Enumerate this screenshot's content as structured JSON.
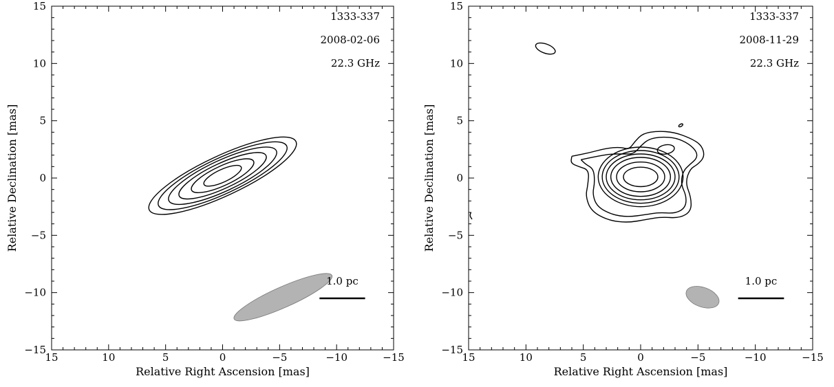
{
  "chart_data": [
    {
      "type": "contour",
      "annotations": [
        "1333-337",
        "2008-02-06",
        "22.3 GHz"
      ],
      "xlabel": "Relative Right Ascension [mas]",
      "ylabel": "Relative Declination [mas]",
      "xlim": [
        15,
        -15
      ],
      "ylim": [
        -15,
        15
      ],
      "xticks": [
        15,
        10,
        5,
        0,
        -5,
        -10,
        -15
      ],
      "yticks": [
        -15,
        -10,
        -5,
        0,
        5,
        10,
        15
      ],
      "xtick_labels": [
        "15",
        "10",
        "5",
        "0",
        "−5",
        "−10",
        "−15"
      ],
      "ytick_labels": [
        "−15",
        "−10",
        "−5",
        "0",
        "5",
        "10",
        "15"
      ],
      "scale_bar": {
        "label": "1.0 pc",
        "x_from": -8.5,
        "x_to": -12.5,
        "y": -10.5
      },
      "beam": {
        "x": -5.3,
        "y": -10.4,
        "a": 4.7,
        "b": 0.9,
        "pa_deg": 24,
        "color": "#b3b3b3"
      },
      "contours": [
        {
          "x": 0,
          "y": 0.2,
          "a": 1.8,
          "b": 0.55,
          "pa_deg": 25
        },
        {
          "x": 0,
          "y": 0.2,
          "a": 3.0,
          "b": 0.85,
          "pa_deg": 25
        },
        {
          "x": 0,
          "y": 0.2,
          "a": 4.2,
          "b": 1.1,
          "pa_deg": 25
        },
        {
          "x": 0,
          "y": 0.2,
          "a": 5.2,
          "b": 1.35,
          "pa_deg": 25
        },
        {
          "x": 0,
          "y": 0.2,
          "a": 6.2,
          "b": 1.55,
          "pa_deg": 25
        },
        {
          "x": 0,
          "y": 0.2,
          "a": 7.1,
          "b": 1.75,
          "pa_deg": 25
        }
      ]
    },
    {
      "type": "contour",
      "annotations": [
        "1333-337",
        "2008-11-29",
        "22.3 GHz"
      ],
      "xlabel": "Relative Right Ascension [mas]",
      "ylabel": "Relative Declination [mas]",
      "xlim": [
        15,
        -15
      ],
      "ylim": [
        -15,
        15
      ],
      "xticks": [
        15,
        10,
        5,
        0,
        -5,
        -10,
        -15
      ],
      "yticks": [
        -15,
        -10,
        -5,
        0,
        5,
        10,
        15
      ],
      "xtick_labels": [
        "15",
        "10",
        "5",
        "0",
        "−5",
        "−10",
        "−15"
      ],
      "ytick_labels": [
        "−15",
        "−10",
        "−5",
        "0",
        "5",
        "10",
        "15"
      ],
      "scale_bar": {
        "label": "1.0 pc",
        "x_from": -8.5,
        "x_to": -12.5,
        "y": -10.5
      },
      "beam": {
        "x": -5.4,
        "y": -10.4,
        "a": 1.5,
        "b": 0.85,
        "pa_deg": -20,
        "color": "#b3b3b3"
      },
      "contours": [
        {
          "x": 0,
          "y": 0.1,
          "a": 1.5,
          "b": 0.85,
          "pa_deg": 0
        },
        {
          "x": 0,
          "y": 0.1,
          "a": 2.1,
          "b": 1.3,
          "pa_deg": 0
        },
        {
          "x": 0,
          "y": 0.1,
          "a": 2.6,
          "b": 1.7,
          "pa_deg": 0
        },
        {
          "x": 0,
          "y": 0.1,
          "a": 3.0,
          "b": 2.0,
          "pa_deg": 0
        },
        {
          "x": 0,
          "y": 0.1,
          "a": 3.35,
          "b": 2.3,
          "pa_deg": 0
        },
        {
          "x": 0,
          "y": 0.1,
          "a": 3.7,
          "b": 2.6,
          "pa_deg": 0
        },
        {
          "x": -2.2,
          "y": 2.5,
          "a": 0.75,
          "b": 0.4,
          "pa_deg": 10
        },
        {
          "x": 8.3,
          "y": 11.3,
          "a": 0.9,
          "b": 0.4,
          "pa_deg": -20
        },
        {
          "x": -3.5,
          "y": 4.6,
          "a": 0.2,
          "b": 0.1,
          "pa_deg": 30
        }
      ],
      "outer_contours": [
        [
          [
            6.0,
            1.9
          ],
          [
            4.5,
            2.2
          ],
          [
            3.0,
            2.6
          ],
          [
            1.8,
            2.7
          ],
          [
            1.0,
            2.5
          ],
          [
            0.5,
            3.2
          ],
          [
            -0.2,
            3.9
          ],
          [
            -1.5,
            4.1
          ],
          [
            -2.9,
            4.0
          ],
          [
            -4.3,
            3.5
          ],
          [
            -5.3,
            2.9
          ],
          [
            -5.6,
            1.9
          ],
          [
            -5.0,
            1.2
          ],
          [
            -4.3,
            0.8
          ],
          [
            -3.9,
            -0.4
          ],
          [
            -4.4,
            -1.7
          ],
          [
            -4.4,
            -2.9
          ],
          [
            -3.4,
            -3.5
          ],
          [
            -1.8,
            -3.4
          ],
          [
            -0.6,
            -3.6
          ],
          [
            1.1,
            -3.9
          ],
          [
            2.8,
            -3.7
          ],
          [
            4.3,
            -2.9
          ],
          [
            4.8,
            -1.6
          ],
          [
            4.6,
            -0.6
          ],
          [
            4.5,
            0.7
          ],
          [
            5.4,
            1.0
          ],
          [
            6.1,
            1.3
          ],
          [
            6.0,
            1.9
          ]
        ],
        [
          [
            5.2,
            1.6
          ],
          [
            3.8,
            1.9
          ],
          [
            2.6,
            2.1
          ],
          [
            1.5,
            2.1
          ],
          [
            0.6,
            2.1
          ],
          [
            0.0,
            2.8
          ],
          [
            -0.7,
            3.4
          ],
          [
            -1.8,
            3.6
          ],
          [
            -3.1,
            3.5
          ],
          [
            -4.2,
            3.0
          ],
          [
            -4.9,
            2.3
          ],
          [
            -4.9,
            1.7
          ],
          [
            -4.3,
            1.2
          ],
          [
            -3.7,
            0.6
          ],
          [
            -3.5,
            -0.5
          ],
          [
            -4.0,
            -1.6
          ],
          [
            -3.9,
            -2.6
          ],
          [
            -3.0,
            -3.1
          ],
          [
            -1.6,
            -3.0
          ],
          [
            -0.4,
            -3.2
          ],
          [
            1.1,
            -3.4
          ],
          [
            2.5,
            -3.2
          ],
          [
            3.8,
            -2.5
          ],
          [
            4.2,
            -1.4
          ],
          [
            4.0,
            -0.4
          ],
          [
            4.1,
            0.8
          ],
          [
            4.8,
            1.2
          ],
          [
            5.2,
            1.6
          ]
        ],
        [
          [
            14.8,
            -3.0
          ],
          [
            14.9,
            -3.3
          ],
          [
            14.7,
            -3.6
          ]
        ]
      ]
    }
  ]
}
